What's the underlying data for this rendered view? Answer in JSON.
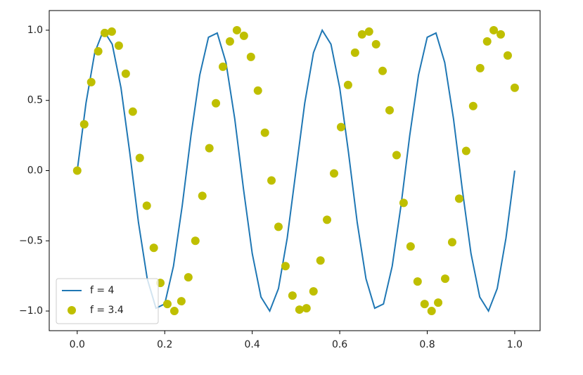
{
  "chart_data": {
    "type": "line",
    "xlim": [
      -0.064,
      1.058
    ],
    "ylim": [
      -1.14,
      1.14
    ],
    "xticks": [
      {
        "value": 0,
        "label": "0.0"
      },
      {
        "value": 0.2,
        "label": "0.2"
      },
      {
        "value": 0.4,
        "label": "0.4"
      },
      {
        "value": 0.6,
        "label": "0.6"
      },
      {
        "value": 0.8,
        "label": "0.8"
      },
      {
        "value": 1,
        "label": "1.0"
      }
    ],
    "yticks": [
      {
        "value": -1,
        "label": "−1.0"
      },
      {
        "value": -0.5,
        "label": "−0.5"
      },
      {
        "value": 0,
        "label": "0.0"
      },
      {
        "value": 0.5,
        "label": "0.5"
      },
      {
        "value": 1,
        "label": "1.0"
      }
    ],
    "legend": "lower left",
    "series": [
      {
        "name": "f = 4",
        "type": "line",
        "color": "#1f77b4",
        "x": [
          0,
          0.02,
          0.04,
          0.06,
          0.08,
          0.1,
          0.12,
          0.14,
          0.16,
          0.18,
          0.2,
          0.22,
          0.24,
          0.26,
          0.28,
          0.3,
          0.32,
          0.34,
          0.36,
          0.38,
          0.4,
          0.42,
          0.44,
          0.46,
          0.48,
          0.5,
          0.52,
          0.54,
          0.56,
          0.58,
          0.6,
          0.62,
          0.64,
          0.66,
          0.68,
          0.7,
          0.72,
          0.74,
          0.76,
          0.78,
          0.8,
          0.82,
          0.84,
          0.86,
          0.88,
          0.9,
          0.92,
          0.94,
          0.96,
          0.98,
          1
        ],
        "values": [
          0,
          0.48,
          0.84,
          1,
          0.9,
          0.59,
          0.13,
          -0.37,
          -0.77,
          -0.98,
          -0.95,
          -0.68,
          -0.25,
          0.25,
          0.68,
          0.95,
          0.98,
          0.77,
          0.37,
          -0.13,
          -0.59,
          -0.9,
          -1,
          -0.84,
          -0.48,
          0,
          0.48,
          0.84,
          1,
          0.9,
          0.59,
          0.13,
          -0.37,
          -0.77,
          -0.98,
          -0.95,
          -0.68,
          -0.25,
          0.25,
          0.68,
          0.95,
          0.98,
          0.77,
          0.37,
          -0.13,
          -0.59,
          -0.9,
          -1,
          -0.84,
          -0.48,
          0
        ]
      },
      {
        "name": "f = 3.4",
        "type": "scatter",
        "color": "#bfbf00",
        "x": [
          0,
          0.016,
          0.032,
          0.048,
          0.063,
          0.079,
          0.095,
          0.111,
          0.127,
          0.143,
          0.159,
          0.175,
          0.19,
          0.206,
          0.222,
          0.238,
          0.254,
          0.27,
          0.286,
          0.302,
          0.317,
          0.333,
          0.349,
          0.365,
          0.381,
          0.397,
          0.413,
          0.429,
          0.444,
          0.46,
          0.476,
          0.492,
          0.508,
          0.524,
          0.54,
          0.556,
          0.571,
          0.587,
          0.603,
          0.619,
          0.635,
          0.651,
          0.667,
          0.683,
          0.698,
          0.714,
          0.73,
          0.746,
          0.762,
          0.778,
          0.794,
          0.81,
          0.825,
          0.841,
          0.857,
          0.873,
          0.889,
          0.905,
          0.921,
          0.937,
          0.952,
          0.968,
          0.984,
          1
        ],
        "values": [
          0,
          0.33,
          0.63,
          0.85,
          0.98,
          0.99,
          0.89,
          0.69,
          0.42,
          0.09,
          -0.25,
          -0.55,
          -0.8,
          -0.95,
          -1,
          -0.93,
          -0.76,
          -0.5,
          -0.18,
          0.16,
          0.48,
          0.74,
          0.92,
          1,
          0.96,
          0.81,
          0.57,
          0.27,
          -0.07,
          -0.4,
          -0.68,
          -0.89,
          -0.99,
          -0.98,
          -0.86,
          -0.64,
          -0.35,
          -0.02,
          0.31,
          0.61,
          0.84,
          0.97,
          0.99,
          0.9,
          0.71,
          0.43,
          0.11,
          -0.23,
          -0.54,
          -0.79,
          -0.95,
          -1,
          -0.94,
          -0.77,
          -0.51,
          -0.2,
          0.14,
          0.46,
          0.73,
          0.92,
          1,
          0.97,
          0.82,
          0.59
        ]
      }
    ]
  }
}
